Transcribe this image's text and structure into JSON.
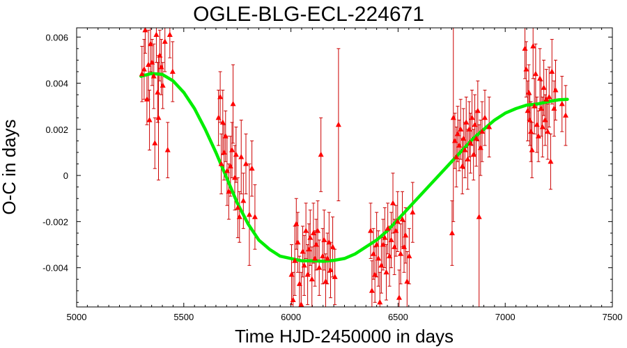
{
  "chart_data": {
    "type": "scatter",
    "title": "OGLE-BLG-ECL-224671",
    "xlabel": "Time HJD-2450000 in days",
    "ylabel": "O-C in days",
    "xlim": [
      5000,
      7500
    ],
    "ylim": [
      -0.0057,
      0.0064
    ],
    "x_ticks": [
      5000,
      5500,
      6000,
      6500,
      7000,
      7500
    ],
    "x_tick_labels": [
      "5000",
      "5500",
      "6000",
      "6500",
      "7000",
      "7500"
    ],
    "y_ticks": [
      -0.004,
      -0.002,
      0,
      0.002,
      0.004,
      0.006
    ],
    "y_tick_labels": [
      "-0.004",
      "-0.002",
      "0",
      "0.002",
      "0.004",
      "0.006"
    ],
    "colors": {
      "points": "#ff0000",
      "errorbars": "#cc0000",
      "fit": "#00ee00",
      "frame": "#000000"
    },
    "series": [
      {
        "type": "scatter_with_errorbars",
        "points": [
          {
            "x": 5305,
            "y": 0.0044,
            "e": 0.0012
          },
          {
            "x": 5315,
            "y": 0.0046,
            "e": 0.0013
          },
          {
            "x": 5320,
            "y": 0.0063,
            "e": 0.001
          },
          {
            "x": 5328,
            "y": 0.0033,
            "e": 0.0011
          },
          {
            "x": 5335,
            "y": 0.0048,
            "e": 0.0015
          },
          {
            "x": 5340,
            "y": 0.0024,
            "e": 0.0013
          },
          {
            "x": 5345,
            "y": 0.0057,
            "e": 0.0012
          },
          {
            "x": 5352,
            "y": 0.0049,
            "e": 0.001
          },
          {
            "x": 5360,
            "y": 0.0043,
            "e": 0.0014
          },
          {
            "x": 5365,
            "y": 0.0014,
            "e": 0.0011
          },
          {
            "x": 5372,
            "y": 0.0061,
            "e": 0.0012
          },
          {
            "x": 5378,
            "y": 0.0036,
            "e": 0.0013
          },
          {
            "x": 5382,
            "y": 0.0025,
            "e": 0.0027
          },
          {
            "x": 5388,
            "y": 0.0052,
            "e": 0.0011
          },
          {
            "x": 5395,
            "y": 0.0047,
            "e": 0.0012
          },
          {
            "x": 5402,
            "y": 0.0039,
            "e": 0.001
          },
          {
            "x": 5412,
            "y": 0.0058,
            "e": 0.0013
          },
          {
            "x": 5425,
            "y": 0.0011,
            "e": 0.0012
          },
          {
            "x": 5435,
            "y": 0.0061,
            "e": 0.001
          },
          {
            "x": 5448,
            "y": 0.0045,
            "e": 0.0013
          },
          {
            "x": 5662,
            "y": 0.0025,
            "e": 0.0012
          },
          {
            "x": 5670,
            "y": 0.0034,
            "e": 0.0011
          },
          {
            "x": 5675,
            "y": 0.0005,
            "e": 0.0013
          },
          {
            "x": 5682,
            "y": 0.0023,
            "e": 0.0014
          },
          {
            "x": 5688,
            "y": 0.001,
            "e": 0.0012
          },
          {
            "x": 5695,
            "y": 0.0017,
            "e": 0.0011
          },
          {
            "x": 5702,
            "y": 0.0002,
            "e": 0.0015
          },
          {
            "x": 5710,
            "y": -0.0007,
            "e": 0.0012
          },
          {
            "x": 5718,
            "y": 0.0004,
            "e": 0.0013
          },
          {
            "x": 5725,
            "y": 0.0011,
            "e": 0.0012
          },
          {
            "x": 5730,
            "y": 0.0031,
            "e": 0.0017
          },
          {
            "x": 5738,
            "y": -0.0001,
            "e": 0.0014
          },
          {
            "x": 5744,
            "y": 0.0009,
            "e": 0.0012
          },
          {
            "x": 5752,
            "y": -0.0014,
            "e": 0.0013
          },
          {
            "x": 5760,
            "y": -0.0018,
            "e": 0.0011
          },
          {
            "x": 5768,
            "y": 0.0008,
            "e": 0.0016
          },
          {
            "x": 5778,
            "y": -0.0011,
            "e": 0.0012
          },
          {
            "x": 5790,
            "y": 0.0005,
            "e": 0.0013
          },
          {
            "x": 5806,
            "y": -0.0017,
            "e": 0.0022
          },
          {
            "x": 5818,
            "y": 0.0003,
            "e": 0.0012
          },
          {
            "x": 5832,
            "y": -0.0018,
            "e": 0.0014
          },
          {
            "x": 6003,
            "y": -0.0043,
            "e": 0.0013
          },
          {
            "x": 6010,
            "y": -0.0054,
            "e": 0.0012
          },
          {
            "x": 6018,
            "y": -0.0037,
            "e": 0.0015
          },
          {
            "x": 6025,
            "y": -0.0021,
            "e": 0.0011
          },
          {
            "x": 6032,
            "y": -0.0029,
            "e": 0.0013
          },
          {
            "x": 6040,
            "y": -0.0047,
            "e": 0.0012
          },
          {
            "x": 6048,
            "y": -0.0056,
            "e": 0.0014
          },
          {
            "x": 6055,
            "y": -0.0033,
            "e": 0.0011
          },
          {
            "x": 6062,
            "y": -0.0039,
            "e": 0.0013
          },
          {
            "x": 6070,
            "y": -0.0024,
            "e": 0.0012
          },
          {
            "x": 6078,
            "y": -0.0043,
            "e": 0.0013
          },
          {
            "x": 6084,
            "y": -0.0032,
            "e": 0.0011
          },
          {
            "x": 6090,
            "y": -0.0027,
            "e": 0.0012
          },
          {
            "x": 6098,
            "y": -0.0045,
            "e": 0.0014
          },
          {
            "x": 6105,
            "y": -0.0025,
            "e": 0.0013
          },
          {
            "x": 6112,
            "y": -0.0036,
            "e": 0.0012
          },
          {
            "x": 6118,
            "y": -0.003,
            "e": 0.0011
          },
          {
            "x": 6125,
            "y": -0.0024,
            "e": 0.0013
          },
          {
            "x": 6132,
            "y": -0.004,
            "e": 0.0012
          },
          {
            "x": 6140,
            "y": 0.0009,
            "e": 0.0016
          },
          {
            "x": 6148,
            "y": -0.0035,
            "e": 0.0012
          },
          {
            "x": 6155,
            "y": -0.0028,
            "e": 0.0013
          },
          {
            "x": 6162,
            "y": -0.0046,
            "e": 0.0012
          },
          {
            "x": 6170,
            "y": -0.0036,
            "e": 0.0011
          },
          {
            "x": 6178,
            "y": -0.0029,
            "e": 0.0013
          },
          {
            "x": 6185,
            "y": -0.0041,
            "e": 0.0012
          },
          {
            "x": 6195,
            "y": -0.0031,
            "e": 0.0013
          },
          {
            "x": 6205,
            "y": -0.0044,
            "e": 0.0012
          },
          {
            "x": 6222,
            "y": 0.0022,
            "e": 0.0033
          },
          {
            "x": 6372,
            "y": -0.0024,
            "e": 0.0012
          },
          {
            "x": 6378,
            "y": -0.005,
            "e": 0.0013
          },
          {
            "x": 6385,
            "y": -0.0034,
            "e": 0.0011
          },
          {
            "x": 6392,
            "y": -0.0043,
            "e": 0.0012
          },
          {
            "x": 6400,
            "y": -0.003,
            "e": 0.0014
          },
          {
            "x": 6408,
            "y": -0.0036,
            "e": 0.0012
          },
          {
            "x": 6415,
            "y": -0.0055,
            "e": 0.0013
          },
          {
            "x": 6422,
            "y": -0.0039,
            "e": 0.0012
          },
          {
            "x": 6430,
            "y": -0.003,
            "e": 0.0011
          },
          {
            "x": 6438,
            "y": -0.0027,
            "e": 0.0013
          },
          {
            "x": 6445,
            "y": -0.0042,
            "e": 0.0012
          },
          {
            "x": 6452,
            "y": -0.0023,
            "e": 0.0011
          },
          {
            "x": 6460,
            "y": -0.0035,
            "e": 0.0013
          },
          {
            "x": 6468,
            "y": -0.0028,
            "e": 0.0012
          },
          {
            "x": 6476,
            "y": -0.0012,
            "e": 0.0013
          },
          {
            "x": 6483,
            "y": -0.0031,
            "e": 0.0012
          },
          {
            "x": 6490,
            "y": -0.0024,
            "e": 0.0011
          },
          {
            "x": 6498,
            "y": -0.002,
            "e": 0.0013
          },
          {
            "x": 6505,
            "y": -0.0053,
            "e": 0.0012
          },
          {
            "x": 6512,
            "y": -0.0034,
            "e": 0.0013
          },
          {
            "x": 6520,
            "y": -0.0019,
            "e": 0.0012
          },
          {
            "x": 6528,
            "y": -0.0031,
            "e": 0.0011
          },
          {
            "x": 6535,
            "y": -0.0026,
            "e": 0.0012
          },
          {
            "x": 6542,
            "y": -0.0046,
            "e": 0.0013
          },
          {
            "x": 6552,
            "y": -0.0035,
            "e": 0.0012
          },
          {
            "x": 6568,
            "y": -0.0016,
            "e": 0.0013
          },
          {
            "x": 6752,
            "y": -0.0025,
            "e": 0.0014
          },
          {
            "x": 6758,
            "y": 0.0025,
            "e": 0.0045
          },
          {
            "x": 6765,
            "y": 0.0015,
            "e": 0.0012
          },
          {
            "x": 6772,
            "y": 0.0008,
            "e": 0.0013
          },
          {
            "x": 6778,
            "y": 0.0018,
            "e": 0.0012
          },
          {
            "x": 6785,
            "y": 0.0013,
            "e": 0.0011
          },
          {
            "x": 6792,
            "y": 0.002,
            "e": 0.0013
          },
          {
            "x": 6800,
            "y": 0.0004,
            "e": 0.0012
          },
          {
            "x": 6805,
            "y": 0.0016,
            "e": 0.0013
          },
          {
            "x": 6812,
            "y": 0.0011,
            "e": 0.0012
          },
          {
            "x": 6818,
            "y": 0.0023,
            "e": 0.0011
          },
          {
            "x": 6825,
            "y": 0.0007,
            "e": 0.0013
          },
          {
            "x": 6832,
            "y": 0.002,
            "e": 0.0012
          },
          {
            "x": 6838,
            "y": 0.0014,
            "e": 0.0013
          },
          {
            "x": 6845,
            "y": 0.0025,
            "e": 0.0012
          },
          {
            "x": 6852,
            "y": 0.0009,
            "e": 0.0011
          },
          {
            "x": 6858,
            "y": 0.0022,
            "e": 0.0013
          },
          {
            "x": 6865,
            "y": 0.0016,
            "e": 0.0012
          },
          {
            "x": 6872,
            "y": 0.0028,
            "e": 0.0013
          },
          {
            "x": 6878,
            "y": -0.0018,
            "e": 0.004
          },
          {
            "x": 6885,
            "y": 0.0012,
            "e": 0.0012
          },
          {
            "x": 6892,
            "y": 0.0019,
            "e": 0.0013
          },
          {
            "x": 6905,
            "y": 0.0025,
            "e": 0.0012
          },
          {
            "x": 6925,
            "y": 0.0021,
            "e": 0.0013
          },
          {
            "x": 7092,
            "y": 0.0055,
            "e": 0.0013
          },
          {
            "x": 7098,
            "y": 0.0046,
            "e": 0.0012
          },
          {
            "x": 7105,
            "y": 0.0028,
            "e": 0.0013
          },
          {
            "x": 7110,
            "y": 0.0036,
            "e": 0.0012
          },
          {
            "x": 7115,
            "y": 0.0024,
            "e": 0.0011
          },
          {
            "x": 7120,
            "y": 0.0019,
            "e": 0.0013
          },
          {
            "x": 7125,
            "y": 0.0011,
            "e": 0.0012
          },
          {
            "x": 7130,
            "y": 0.0056,
            "e": 0.0014
          },
          {
            "x": 7136,
            "y": 0.003,
            "e": 0.0012
          },
          {
            "x": 7142,
            "y": 0.0044,
            "e": 0.0013
          },
          {
            "x": 7148,
            "y": 0.0022,
            "e": 0.0012
          },
          {
            "x": 7155,
            "y": 0.0017,
            "e": 0.0011
          },
          {
            "x": 7162,
            "y": 0.0042,
            "e": 0.0013
          },
          {
            "x": 7168,
            "y": 0.0029,
            "e": 0.0012
          },
          {
            "x": 7174,
            "y": 0.0021,
            "e": 0.0013
          },
          {
            "x": 7180,
            "y": 0.0038,
            "e": 0.0012
          },
          {
            "x": 7186,
            "y": 0.0024,
            "e": 0.0011
          },
          {
            "x": 7192,
            "y": 0.0033,
            "e": 0.0013
          },
          {
            "x": 7198,
            "y": 0.0019,
            "e": 0.0012
          },
          {
            "x": 7205,
            "y": 0.0034,
            "e": 0.0013
          },
          {
            "x": 7212,
            "y": 0.0006,
            "e": 0.0012
          },
          {
            "x": 7218,
            "y": 0.0045,
            "e": 0.0014
          },
          {
            "x": 7228,
            "y": 0.0029,
            "e": 0.0012
          },
          {
            "x": 7235,
            "y": 0.0037,
            "e": 0.0013
          },
          {
            "x": 7265,
            "y": 0.0031,
            "e": 0.0012
          },
          {
            "x": 7282,
            "y": 0.0026,
            "e": 0.0013
          }
        ]
      },
      {
        "type": "fit_curve",
        "x": [
          5300,
          5350,
          5400,
          5450,
          5500,
          5550,
          5600,
          5650,
          5700,
          5750,
          5800,
          5850,
          5900,
          5950,
          6000,
          6050,
          6100,
          6150,
          6200,
          6250,
          6300,
          6350,
          6400,
          6450,
          6500,
          6550,
          6600,
          6650,
          6700,
          6750,
          6800,
          6850,
          6900,
          6950,
          7000,
          7050,
          7100,
          7150,
          7200,
          7250,
          7290
        ],
        "y": [
          0.0043,
          0.00442,
          0.00438,
          0.0041,
          0.0036,
          0.0029,
          0.002,
          0.001,
          -0.0001,
          -0.0012,
          -0.0021,
          -0.0028,
          -0.0032,
          -0.0035,
          -0.0036,
          -0.0037,
          -0.0037,
          -0.00372,
          -0.00368,
          -0.0036,
          -0.0034,
          -0.0031,
          -0.0028,
          -0.0024,
          -0.0019,
          -0.0014,
          -0.0009,
          -0.0004,
          0.0001,
          0.0006,
          0.0011,
          0.0016,
          0.002,
          0.0024,
          0.0027,
          0.0029,
          0.00305,
          0.0031,
          0.0032,
          0.00328,
          0.0033
        ]
      }
    ]
  }
}
